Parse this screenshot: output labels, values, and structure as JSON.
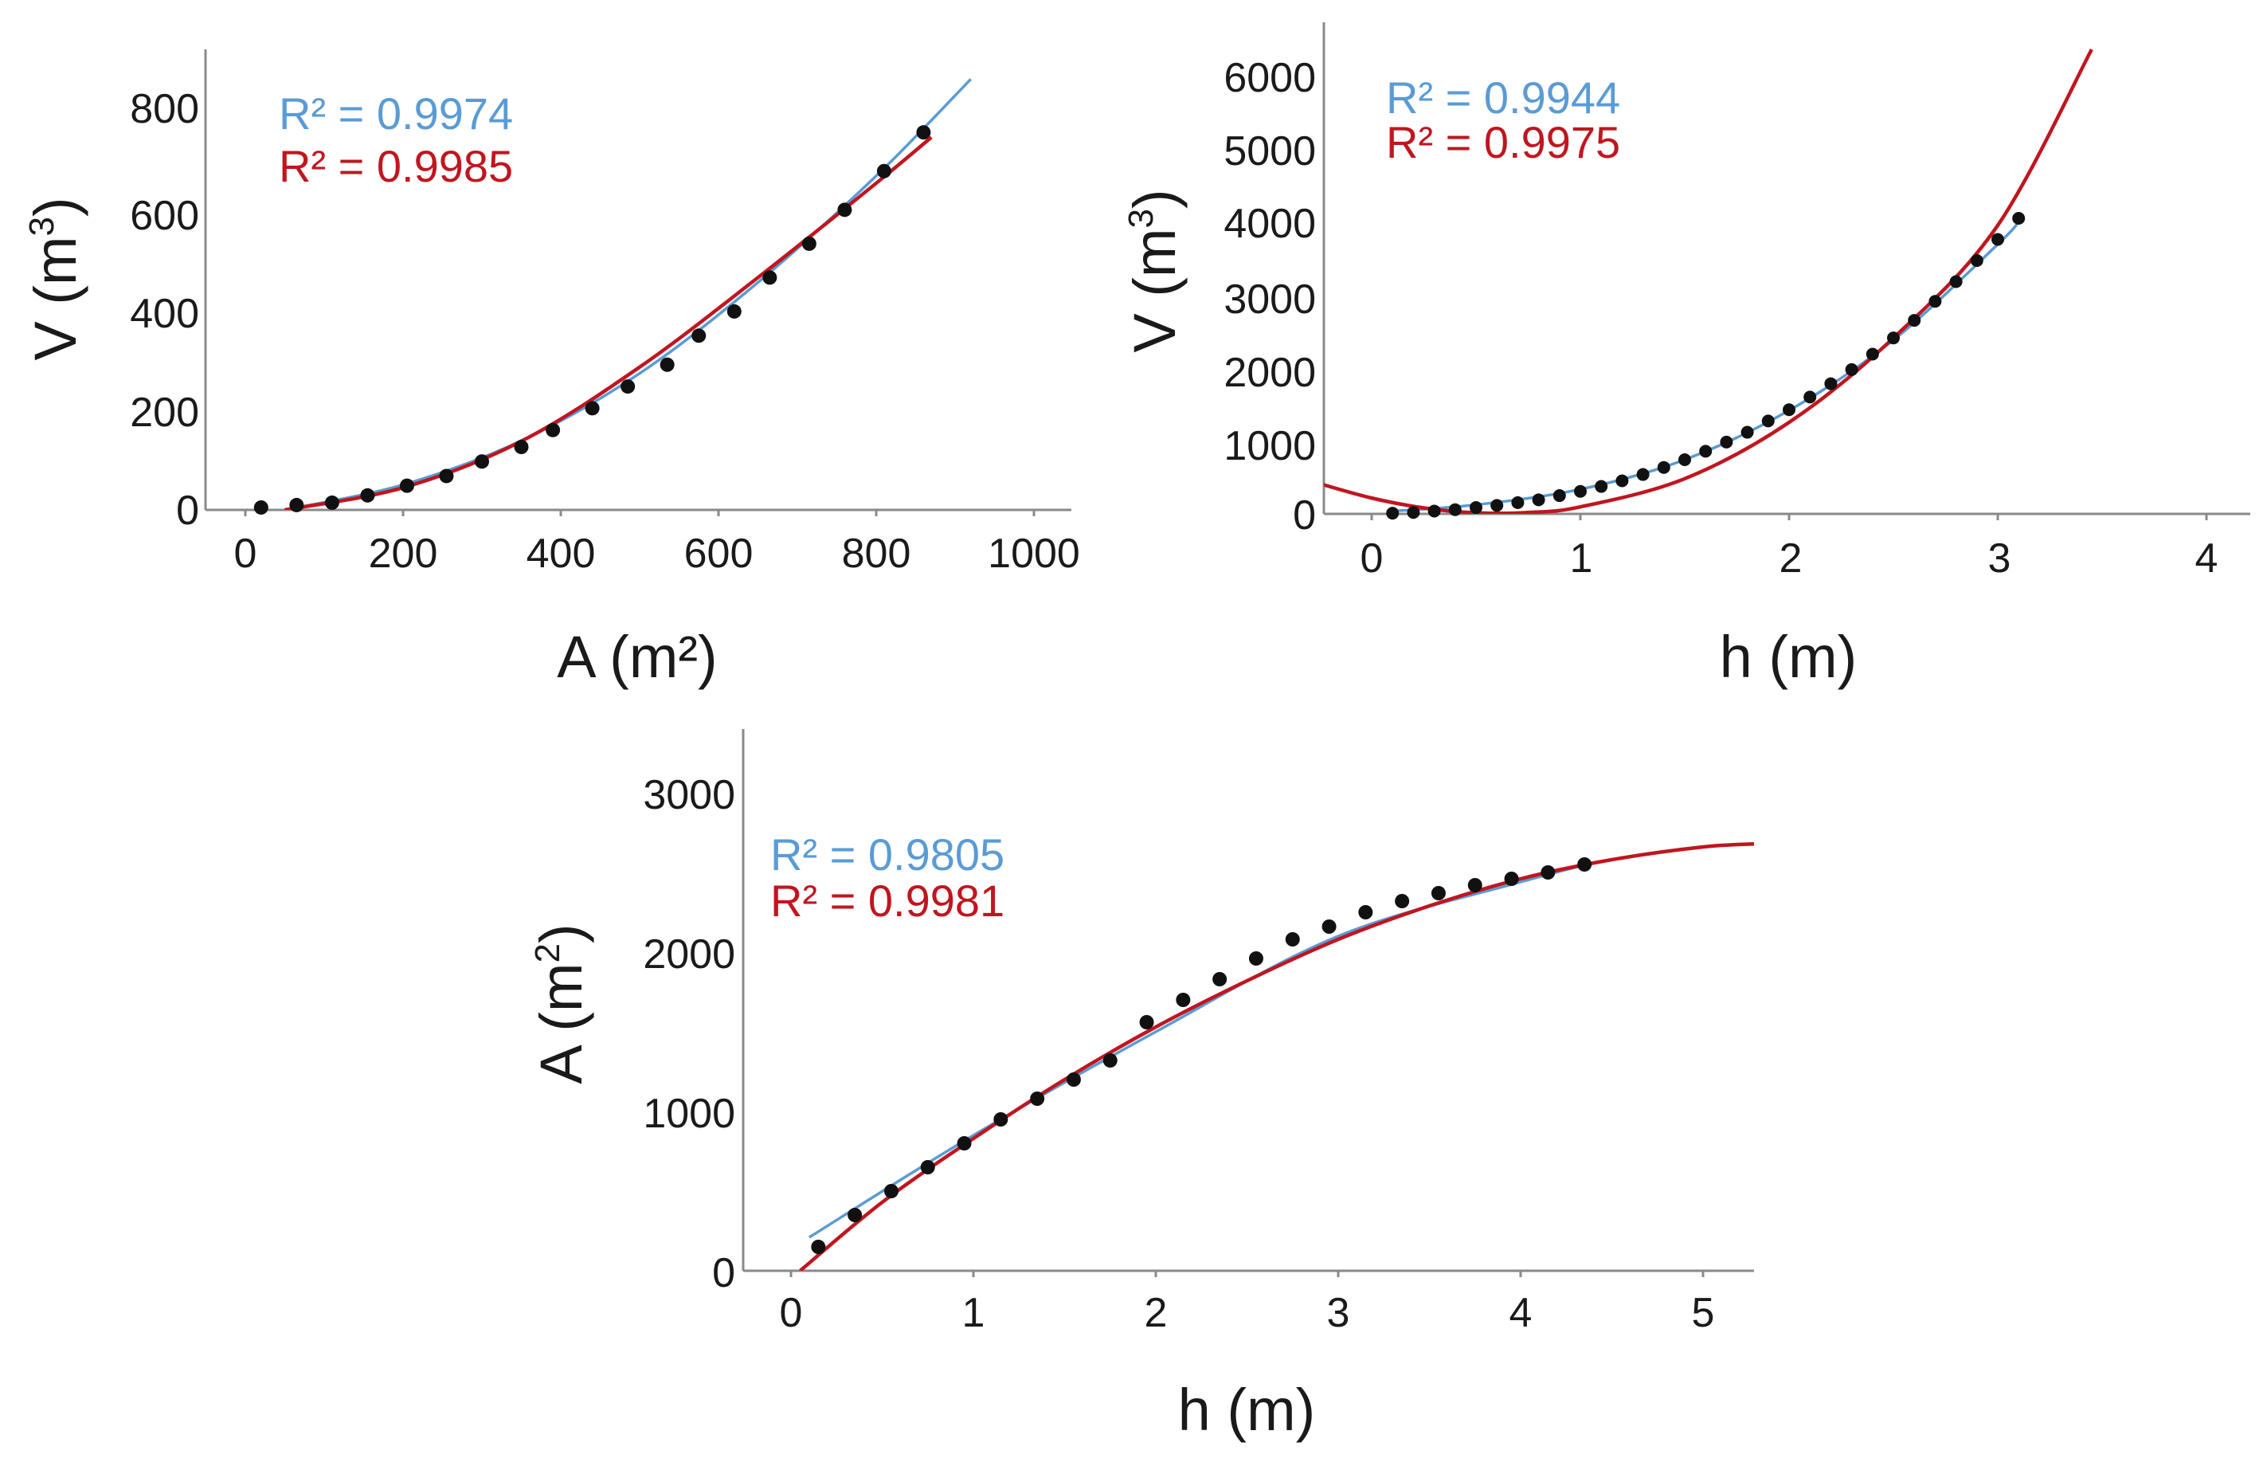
{
  "colors": {
    "blue": "#5a9bd5",
    "red": "#c0161f",
    "points": "#111111"
  },
  "chart_data": [
    {
      "type": "scatter",
      "id": "va",
      "title": "",
      "xlabel": "A (m²)",
      "ylabel_main": "V (m",
      "ylabel_sup": "3",
      "ylabel_tail": ")",
      "xlim": [
        -50,
        1050
      ],
      "ylim": [
        0,
        900
      ],
      "xticks": [
        0,
        200,
        400,
        600,
        800,
        1000
      ],
      "yticks": [
        0,
        200,
        400,
        600,
        800
      ],
      "xtick_labels": [
        "0",
        "200",
        "400",
        "600",
        "800",
        "1000"
      ],
      "ytick_labels": [
        "0",
        "200",
        "400",
        "600",
        "800"
      ],
      "points": {
        "x": [
          20,
          65,
          110,
          155,
          205,
          255,
          300,
          350,
          390,
          440,
          485,
          535,
          575,
          620,
          665,
          715,
          760,
          810,
          860
        ],
        "y": [
          5,
          10,
          15,
          30,
          50,
          70,
          100,
          130,
          165,
          210,
          255,
          300,
          360,
          410,
          480,
          550,
          620,
          700,
          780
        ]
      },
      "fits": [
        {
          "name": "R² = 0.9974",
          "color": "blue",
          "x": [
            50,
            200,
            350,
            500,
            650,
            800,
            920
          ],
          "y": [
            0,
            52,
            143,
            282,
            470,
            690,
            890
          ]
        },
        {
          "name": "R² = 0.9985",
          "color": "red",
          "x": [
            50,
            200,
            350,
            500,
            650,
            800,
            870
          ],
          "y": [
            0,
            46,
            142,
            295,
            480,
            675,
            770
          ]
        }
      ],
      "legend": [
        "R² = 0.9974",
        "R² = 0.9985"
      ]
    },
    {
      "type": "scatter",
      "id": "vh",
      "title": "",
      "xlabel": "h (m)",
      "ylabel_main": "V (m",
      "ylabel_sup": "3",
      "ylabel_tail": ")",
      "xlim": [
        -0.25,
        4.25
      ],
      "ylim": [
        0,
        6600
      ],
      "xticks": [
        0,
        1,
        2,
        3,
        4
      ],
      "yticks": [
        0,
        1000,
        2000,
        3000,
        4000,
        5000,
        6000
      ],
      "xtick_labels": [
        "0",
        "1",
        "2",
        "3",
        "4"
      ],
      "ytick_labels": [
        "0",
        "1000",
        "2000",
        "3000",
        "4000",
        "5000",
        "6000"
      ],
      "points": {
        "x": [
          0.1,
          0.2,
          0.3,
          0.4,
          0.5,
          0.6,
          0.7,
          0.8,
          0.9,
          1.0,
          1.1,
          1.2,
          1.3,
          1.4,
          1.5,
          1.6,
          1.7,
          1.8,
          1.9,
          2.0,
          2.1,
          2.2,
          2.3,
          2.4,
          2.5,
          2.6,
          2.7,
          2.8,
          2.9,
          3.0,
          3.1
        ],
        "y": [
          10,
          20,
          40,
          60,
          90,
          120,
          160,
          200,
          260,
          320,
          390,
          470,
          560,
          660,
          770,
          890,
          1020,
          1160,
          1320,
          1480,
          1660,
          1850,
          2050,
          2270,
          2500,
          2750,
          3020,
          3300,
          3600,
          3900,
          4200
        ]
      },
      "fits": [
        {
          "name": "R² = 0.9944",
          "color": "blue",
          "x": [
            0.1,
            0.5,
            1.0,
            1.5,
            2.0,
            2.5,
            3.0,
            3.1
          ],
          "y": [
            40,
            130,
            350,
            770,
            1470,
            2470,
            3830,
            4150
          ]
        },
        {
          "name": "R² = 0.9975",
          "color": "red",
          "x": [
            -0.25,
            0,
            0.25,
            0.5,
            0.75,
            1.0,
            1.5,
            2.0,
            2.5,
            3.0,
            3.45
          ],
          "y": [
            430,
            225,
            85,
            15,
            20,
            100,
            500,
            1300,
            2500,
            4100,
            6600
          ]
        }
      ],
      "legend": [
        "R² = 0.9944",
        "R² = 0.9975"
      ]
    },
    {
      "type": "scatter",
      "id": "ah",
      "title": "",
      "xlabel": "h (m)",
      "ylabel_main": "A (m",
      "ylabel_sup": "2",
      "ylabel_tail": ")",
      "xlim": [
        -0.25,
        5.3
      ],
      "ylim": [
        0,
        3400
      ],
      "xticks": [
        0,
        1,
        2,
        3,
        4,
        5
      ],
      "yticks": [
        0,
        1000,
        2000,
        3000
      ],
      "xtick_labels": [
        "0",
        "1",
        "2",
        "3",
        "4",
        "5"
      ],
      "ytick_labels": [
        "0",
        "1000",
        "2000",
        "3000"
      ],
      "points": {
        "x": [
          0.15,
          0.35,
          0.55,
          0.75,
          0.95,
          1.15,
          1.35,
          1.55,
          1.75,
          1.95,
          2.15,
          2.35,
          2.55,
          2.75,
          2.95,
          3.15,
          3.35,
          3.55,
          3.75,
          3.95,
          4.15,
          4.35
        ],
        "y": [
          150,
          350,
          500,
          650,
          800,
          950,
          1080,
          1200,
          1320,
          1560,
          1700,
          1830,
          1960,
          2080,
          2160,
          2250,
          2320,
          2370,
          2420,
          2460,
          2500,
          2550
        ]
      },
      "fits": [
        {
          "name": "R² = 0.9805",
          "color": "blue",
          "x": [
            0.1,
            1.0,
            2.0,
            3.0,
            4.0,
            4.4
          ],
          "y": [
            210,
            850,
            1500,
            2100,
            2440,
            2560
          ]
        },
        {
          "name": "R² = 0.9981",
          "color": "red",
          "x": [
            0.05,
            0.5,
            1.0,
            1.5,
            2.0,
            2.5,
            3.0,
            3.5,
            4.0,
            4.5,
            5.0,
            5.3
          ],
          "y": [
            0,
            430,
            830,
            1200,
            1530,
            1820,
            2080,
            2290,
            2460,
            2580,
            2660,
            2680
          ]
        }
      ],
      "legend": [
        "R² = 0.9805",
        "R² = 0.9981"
      ]
    }
  ]
}
